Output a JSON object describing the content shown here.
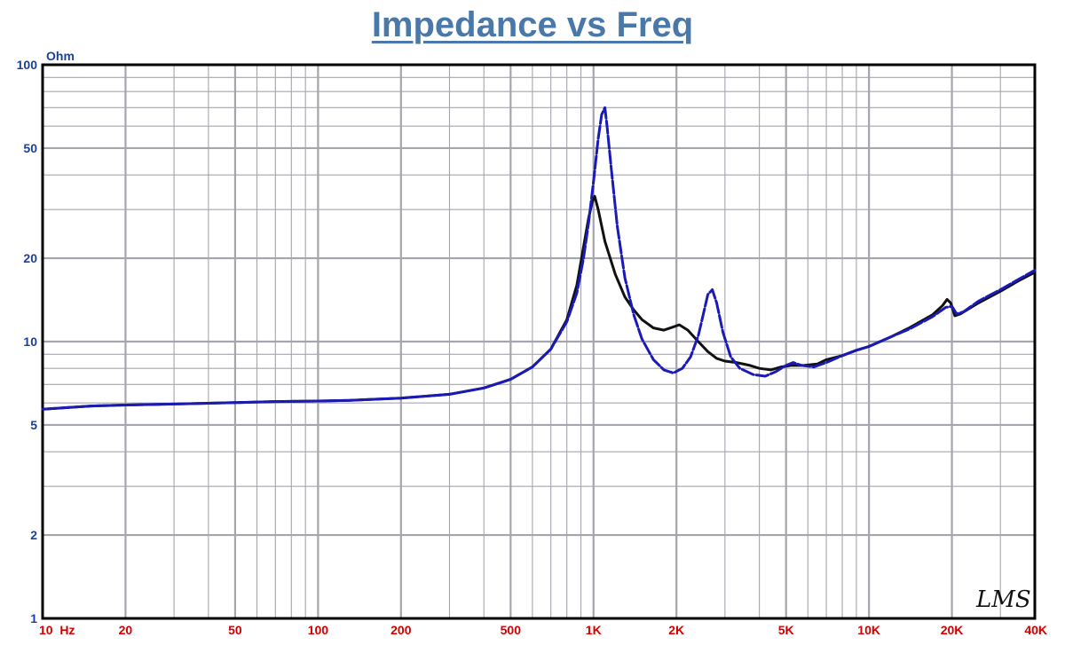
{
  "chart_data": {
    "type": "line",
    "title": "Impedance vs Freq",
    "xlabel": "",
    "ylabel": "Ohm",
    "x_scale": "log",
    "y_scale": "log",
    "xlim": [
      10,
      40000
    ],
    "ylim": [
      1,
      100
    ],
    "grid": true,
    "x_tick_values": [
      10,
      20,
      50,
      100,
      200,
      500,
      1000,
      2000,
      5000,
      10000,
      20000,
      40000
    ],
    "x_tick_labels": [
      "10  Hz",
      "20",
      "50",
      "100",
      "200",
      "500",
      "1K",
      "2K",
      "5K",
      "10K",
      "20K",
      "40K"
    ],
    "y_tick_values": [
      1,
      2,
      5,
      10,
      20,
      50,
      100
    ],
    "y_tick_labels": [
      "1",
      "2",
      "5",
      "10",
      "20",
      "50",
      "100"
    ],
    "logo_text": "LMS",
    "colors": {
      "title": "#4a78a8",
      "y_axis_text": "#1a3f9c",
      "x_axis_text": "#d40000",
      "grid": "#a5a5ad",
      "frame": "#000000",
      "series_black": "#111111",
      "series_blue": "#1a1ab8"
    },
    "series": [
      {
        "color": "#111111",
        "points": [
          [
            10,
            5.7
          ],
          [
            15,
            5.85
          ],
          [
            20,
            5.9
          ],
          [
            30,
            5.95
          ],
          [
            50,
            6.02
          ],
          [
            70,
            6.07
          ],
          [
            100,
            6.1
          ],
          [
            130,
            6.13
          ],
          [
            200,
            6.25
          ],
          [
            300,
            6.45
          ],
          [
            400,
            6.8
          ],
          [
            500,
            7.3
          ],
          [
            600,
            8.1
          ],
          [
            700,
            9.4
          ],
          [
            800,
            12
          ],
          [
            870,
            16
          ],
          [
            920,
            22
          ],
          [
            960,
            28
          ],
          [
            990,
            32
          ],
          [
            1010,
            33.5
          ],
          [
            1040,
            30
          ],
          [
            1100,
            23
          ],
          [
            1200,
            17.5
          ],
          [
            1300,
            14.5
          ],
          [
            1400,
            13
          ],
          [
            1500,
            12
          ],
          [
            1650,
            11.2
          ],
          [
            1800,
            11
          ],
          [
            1950,
            11.3
          ],
          [
            2050,
            11.5
          ],
          [
            2200,
            11
          ],
          [
            2400,
            10
          ],
          [
            2600,
            9.2
          ],
          [
            2800,
            8.7
          ],
          [
            3000,
            8.5
          ],
          [
            3300,
            8.4
          ],
          [
            3700,
            8.2
          ],
          [
            4000,
            8
          ],
          [
            4400,
            7.9
          ],
          [
            4800,
            8.1
          ],
          [
            5200,
            8.2
          ],
          [
            5800,
            8.2
          ],
          [
            6500,
            8.3
          ],
          [
            7000,
            8.6
          ],
          [
            8000,
            8.9
          ],
          [
            9000,
            9.3
          ],
          [
            10000,
            9.6
          ],
          [
            12000,
            10.4
          ],
          [
            14000,
            11.2
          ],
          [
            17000,
            12.5
          ],
          [
            18500,
            13.5
          ],
          [
            19200,
            14.2
          ],
          [
            19800,
            13.8
          ],
          [
            20500,
            12.4
          ],
          [
            21500,
            12.6
          ],
          [
            25000,
            13.8
          ],
          [
            30000,
            15.2
          ],
          [
            35000,
            16.6
          ],
          [
            40000,
            17.8
          ]
        ]
      },
      {
        "color": "#1a1ab8",
        "points": [
          [
            10,
            5.7
          ],
          [
            15,
            5.85
          ],
          [
            20,
            5.9
          ],
          [
            30,
            5.95
          ],
          [
            50,
            6.02
          ],
          [
            70,
            6.07
          ],
          [
            100,
            6.1
          ],
          [
            130,
            6.13
          ],
          [
            200,
            6.25
          ],
          [
            300,
            6.45
          ],
          [
            400,
            6.8
          ],
          [
            500,
            7.3
          ],
          [
            600,
            8.1
          ],
          [
            700,
            9.4
          ],
          [
            800,
            11.8
          ],
          [
            870,
            15
          ],
          [
            920,
            20
          ],
          [
            960,
            27
          ],
          [
            1000,
            38
          ],
          [
            1040,
            54
          ],
          [
            1070,
            66
          ],
          [
            1100,
            70
          ],
          [
            1120,
            60
          ],
          [
            1160,
            42
          ],
          [
            1220,
            26
          ],
          [
            1300,
            17
          ],
          [
            1400,
            12.5
          ],
          [
            1500,
            10.2
          ],
          [
            1650,
            8.6
          ],
          [
            1800,
            7.9
          ],
          [
            1950,
            7.7
          ],
          [
            2100,
            8
          ],
          [
            2250,
            8.8
          ],
          [
            2400,
            10.5
          ],
          [
            2500,
            12.5
          ],
          [
            2600,
            14.8
          ],
          [
            2700,
            15.4
          ],
          [
            2800,
            13.8
          ],
          [
            2950,
            10.8
          ],
          [
            3150,
            8.8
          ],
          [
            3400,
            8
          ],
          [
            3800,
            7.6
          ],
          [
            4200,
            7.5
          ],
          [
            4600,
            7.8
          ],
          [
            5000,
            8.2
          ],
          [
            5300,
            8.4
          ],
          [
            5700,
            8.2
          ],
          [
            6300,
            8.1
          ],
          [
            7000,
            8.4
          ],
          [
            8000,
            8.9
          ],
          [
            9000,
            9.3
          ],
          [
            10000,
            9.6
          ],
          [
            12000,
            10.4
          ],
          [
            14000,
            11.1
          ],
          [
            17000,
            12.3
          ],
          [
            19000,
            13.3
          ],
          [
            20000,
            13.4
          ],
          [
            20800,
            12.6
          ],
          [
            22000,
            12.8
          ],
          [
            25000,
            14
          ],
          [
            30000,
            15.4
          ],
          [
            35000,
            16.8
          ],
          [
            40000,
            18.1
          ]
        ]
      }
    ]
  }
}
